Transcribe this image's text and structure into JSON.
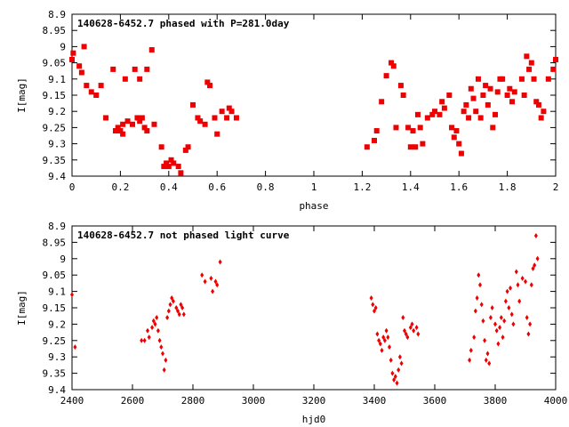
{
  "chart_data": [
    {
      "type": "scatter",
      "title": "140628-6452.7 phased with P=281.0day",
      "xlabel": "phase",
      "ylabel": "I[mag]",
      "xlim": [
        0,
        2
      ],
      "ylim": [
        8.9,
        9.4
      ],
      "y_inverted": true,
      "grid": false,
      "legend": "none",
      "marker": "filled-square",
      "color": "#ee0000",
      "x_ticks": [
        0,
        0.2,
        0.4,
        0.6,
        0.8,
        1,
        1.2,
        1.4,
        1.6,
        1.8,
        2
      ],
      "x_tick_labels": [
        "0",
        "0.2",
        "0.4",
        "0.6",
        "0.8",
        "1",
        "1.2",
        "1.4",
        "1.6",
        "1.8",
        "2"
      ],
      "y_ticks": [
        8.9,
        8.95,
        9,
        9.05,
        9.1,
        9.15,
        9.2,
        9.25,
        9.3,
        9.35,
        9.4
      ],
      "y_tick_labels": [
        "8.9",
        "8.95",
        "9",
        "9.05",
        "9.1",
        "9.15",
        "9.2",
        "9.25",
        "9.3",
        "9.35",
        "9.4"
      ],
      "points": [
        [
          0.0,
          9.04
        ],
        [
          0.005,
          9.02
        ],
        [
          0.03,
          9.06
        ],
        [
          0.04,
          9.08
        ],
        [
          0.05,
          9.0
        ],
        [
          0.06,
          9.12
        ],
        [
          0.08,
          9.14
        ],
        [
          0.1,
          9.15
        ],
        [
          0.12,
          9.12
        ],
        [
          0.14,
          9.22
        ],
        [
          0.17,
          9.07
        ],
        [
          0.18,
          9.26
        ],
        [
          0.19,
          9.25
        ],
        [
          0.2,
          9.26
        ],
        [
          0.21,
          9.24
        ],
        [
          0.21,
          9.27
        ],
        [
          0.22,
          9.1
        ],
        [
          0.23,
          9.23
        ],
        [
          0.25,
          9.24
        ],
        [
          0.26,
          9.07
        ],
        [
          0.27,
          9.22
        ],
        [
          0.28,
          9.1
        ],
        [
          0.28,
          9.23
        ],
        [
          0.29,
          9.22
        ],
        [
          0.3,
          9.25
        ],
        [
          0.31,
          9.07
        ],
        [
          0.31,
          9.26
        ],
        [
          0.33,
          9.01
        ],
        [
          0.34,
          9.24
        ],
        [
          0.37,
          9.31
        ],
        [
          0.38,
          9.37
        ],
        [
          0.39,
          9.36
        ],
        [
          0.4,
          9.37
        ],
        [
          0.41,
          9.35
        ],
        [
          0.42,
          9.36
        ],
        [
          0.44,
          9.37
        ],
        [
          0.45,
          9.39
        ],
        [
          0.47,
          9.32
        ],
        [
          0.48,
          9.31
        ],
        [
          0.5,
          9.18
        ],
        [
          0.52,
          9.22
        ],
        [
          0.53,
          9.23
        ],
        [
          0.55,
          9.24
        ],
        [
          0.56,
          9.11
        ],
        [
          0.57,
          9.12
        ],
        [
          0.59,
          9.22
        ],
        [
          0.6,
          9.27
        ],
        [
          0.62,
          9.2
        ],
        [
          0.64,
          9.22
        ],
        [
          0.65,
          9.19
        ],
        [
          0.66,
          9.2
        ],
        [
          0.68,
          9.22
        ],
        [
          1.22,
          9.31
        ],
        [
          1.25,
          9.29
        ],
        [
          1.26,
          9.26
        ],
        [
          1.28,
          9.17
        ],
        [
          1.3,
          9.09
        ],
        [
          1.32,
          9.05
        ],
        [
          1.33,
          9.06
        ],
        [
          1.34,
          9.25
        ],
        [
          1.36,
          9.12
        ],
        [
          1.37,
          9.15
        ],
        [
          1.39,
          9.25
        ],
        [
          1.4,
          9.31
        ],
        [
          1.41,
          9.26
        ],
        [
          1.42,
          9.31
        ],
        [
          1.43,
          9.21
        ],
        [
          1.44,
          9.25
        ],
        [
          1.45,
          9.3
        ],
        [
          1.47,
          9.22
        ],
        [
          1.49,
          9.21
        ],
        [
          1.5,
          9.2
        ],
        [
          1.52,
          9.21
        ],
        [
          1.53,
          9.17
        ],
        [
          1.54,
          9.19
        ],
        [
          1.56,
          9.15
        ],
        [
          1.57,
          9.25
        ],
        [
          1.58,
          9.28
        ],
        [
          1.59,
          9.26
        ],
        [
          1.6,
          9.3
        ],
        [
          1.61,
          9.33
        ],
        [
          1.62,
          9.2
        ],
        [
          1.63,
          9.18
        ],
        [
          1.64,
          9.22
        ],
        [
          1.65,
          9.13
        ],
        [
          1.66,
          9.16
        ],
        [
          1.67,
          9.2
        ],
        [
          1.68,
          9.1
        ],
        [
          1.69,
          9.22
        ],
        [
          1.7,
          9.15
        ],
        [
          1.71,
          9.12
        ],
        [
          1.72,
          9.18
        ],
        [
          1.73,
          9.13
        ],
        [
          1.74,
          9.25
        ],
        [
          1.75,
          9.21
        ],
        [
          1.76,
          9.14
        ],
        [
          1.77,
          9.1
        ],
        [
          1.78,
          9.1
        ],
        [
          1.8,
          9.15
        ],
        [
          1.81,
          9.13
        ],
        [
          1.82,
          9.17
        ],
        [
          1.83,
          9.14
        ],
        [
          1.86,
          9.1
        ],
        [
          1.87,
          9.15
        ],
        [
          1.88,
          9.03
        ],
        [
          1.89,
          9.07
        ],
        [
          1.9,
          9.05
        ],
        [
          1.91,
          9.1
        ],
        [
          1.92,
          9.17
        ],
        [
          1.93,
          9.18
        ],
        [
          1.94,
          9.22
        ],
        [
          1.95,
          9.2
        ],
        [
          1.97,
          9.1
        ],
        [
          1.99,
          9.07
        ],
        [
          2.0,
          9.04
        ]
      ]
    },
    {
      "type": "scatter",
      "title": "140628-6452.7 not phased light curve",
      "xlabel": "hjd0",
      "ylabel": "I[mag]",
      "xlim": [
        2400,
        4000
      ],
      "ylim": [
        8.9,
        9.4
      ],
      "y_inverted": true,
      "grid": false,
      "legend": "none",
      "marker": "filled-diamond",
      "color": "#ee0000",
      "x_ticks": [
        2400,
        2600,
        2800,
        3000,
        3200,
        3400,
        3600,
        3800,
        4000
      ],
      "x_tick_labels": [
        "2400",
        "2600",
        "2800",
        "3000",
        "3200",
        "3400",
        "3600",
        "3800",
        "4000"
      ],
      "y_ticks": [
        8.9,
        8.95,
        9,
        9.05,
        9.1,
        9.15,
        9.2,
        9.25,
        9.3,
        9.35,
        9.4
      ],
      "y_tick_labels": [
        "8.9",
        "8.95",
        "9",
        "9.05",
        "9.1",
        "9.15",
        "9.2",
        "9.25",
        "9.3",
        "9.35",
        "9.4"
      ],
      "points": [
        [
          2400,
          9.11
        ],
        [
          2410,
          9.27
        ],
        [
          2630,
          9.25
        ],
        [
          2640,
          9.25
        ],
        [
          2650,
          9.22
        ],
        [
          2655,
          9.24
        ],
        [
          2665,
          9.21
        ],
        [
          2670,
          9.19
        ],
        [
          2675,
          9.2
        ],
        [
          2680,
          9.18
        ],
        [
          2685,
          9.22
        ],
        [
          2690,
          9.25
        ],
        [
          2695,
          9.27
        ],
        [
          2700,
          9.29
        ],
        [
          2705,
          9.34
        ],
        [
          2710,
          9.31
        ],
        [
          2715,
          9.18
        ],
        [
          2720,
          9.16
        ],
        [
          2725,
          9.14
        ],
        [
          2730,
          9.12
        ],
        [
          2735,
          9.13
        ],
        [
          2745,
          9.15
        ],
        [
          2750,
          9.16
        ],
        [
          2755,
          9.17
        ],
        [
          2760,
          9.14
        ],
        [
          2765,
          9.15
        ],
        [
          2770,
          9.17
        ],
        [
          2830,
          9.05
        ],
        [
          2840,
          9.07
        ],
        [
          2860,
          9.06
        ],
        [
          2865,
          9.1
        ],
        [
          2875,
          9.07
        ],
        [
          2880,
          9.08
        ],
        [
          2890,
          9.01
        ],
        [
          3390,
          9.12
        ],
        [
          3395,
          9.14
        ],
        [
          3400,
          9.16
        ],
        [
          3405,
          9.15
        ],
        [
          3410,
          9.23
        ],
        [
          3415,
          9.25
        ],
        [
          3420,
          9.26
        ],
        [
          3425,
          9.28
        ],
        [
          3430,
          9.24
        ],
        [
          3435,
          9.25
        ],
        [
          3440,
          9.22
        ],
        [
          3445,
          9.24
        ],
        [
          3450,
          9.27
        ],
        [
          3455,
          9.31
        ],
        [
          3460,
          9.35
        ],
        [
          3465,
          9.37
        ],
        [
          3470,
          9.36
        ],
        [
          3475,
          9.38
        ],
        [
          3480,
          9.34
        ],
        [
          3485,
          9.3
        ],
        [
          3490,
          9.32
        ],
        [
          3495,
          9.18
        ],
        [
          3500,
          9.22
        ],
        [
          3505,
          9.23
        ],
        [
          3510,
          9.24
        ],
        [
          3520,
          9.21
        ],
        [
          3525,
          9.2
        ],
        [
          3530,
          9.22
        ],
        [
          3540,
          9.21
        ],
        [
          3545,
          9.23
        ],
        [
          3715,
          9.31
        ],
        [
          3720,
          9.28
        ],
        [
          3730,
          9.24
        ],
        [
          3735,
          9.16
        ],
        [
          3740,
          9.12
        ],
        [
          3745,
          9.05
        ],
        [
          3750,
          9.08
        ],
        [
          3755,
          9.14
        ],
        [
          3760,
          9.19
        ],
        [
          3765,
          9.25
        ],
        [
          3770,
          9.31
        ],
        [
          3775,
          9.29
        ],
        [
          3780,
          9.32
        ],
        [
          3785,
          9.18
        ],
        [
          3790,
          9.15
        ],
        [
          3800,
          9.2
        ],
        [
          3805,
          9.22
        ],
        [
          3810,
          9.26
        ],
        [
          3815,
          9.21
        ],
        [
          3820,
          9.18
        ],
        [
          3825,
          9.24
        ],
        [
          3830,
          9.19
        ],
        [
          3835,
          9.13
        ],
        [
          3840,
          9.1
        ],
        [
          3845,
          9.15
        ],
        [
          3850,
          9.09
        ],
        [
          3855,
          9.17
        ],
        [
          3860,
          9.2
        ],
        [
          3870,
          9.04
        ],
        [
          3875,
          9.08
        ],
        [
          3880,
          9.13
        ],
        [
          3890,
          9.06
        ],
        [
          3900,
          9.07
        ],
        [
          3905,
          9.18
        ],
        [
          3910,
          9.23
        ],
        [
          3915,
          9.2
        ],
        [
          3920,
          9.08
        ],
        [
          3925,
          9.03
        ],
        [
          3930,
          9.02
        ],
        [
          3935,
          8.93
        ],
        [
          3940,
          9.0
        ]
      ]
    }
  ]
}
